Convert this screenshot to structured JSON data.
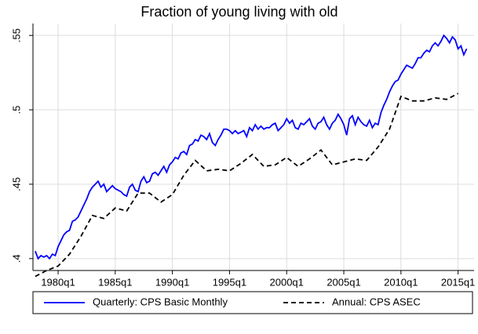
{
  "chart_data": {
    "type": "line",
    "title": "Fraction of young living with old",
    "xlim": [
      1977.8,
      2016.4
    ],
    "ylim": [
      0.392,
      0.558
    ],
    "xticks": [
      {
        "value": 1980,
        "label": "1980q1"
      },
      {
        "value": 1985,
        "label": "1985q1"
      },
      {
        "value": 1990,
        "label": "1990q1"
      },
      {
        "value": 1995,
        "label": "1995q1"
      },
      {
        "value": 2000,
        "label": "2000q1"
      },
      {
        "value": 2005,
        "label": "2005q1"
      },
      {
        "value": 2010,
        "label": "2010q1"
      },
      {
        "value": 2015,
        "label": "2015q1"
      }
    ],
    "yticks": [
      {
        "value": 0.4,
        "label": ".4"
      },
      {
        "value": 0.45,
        "label": ".45"
      },
      {
        "value": 0.5,
        "label": ".5"
      },
      {
        "value": 0.55,
        "label": ".55"
      }
    ],
    "grid": true,
    "legend": "bottom",
    "series": [
      {
        "name": "Quarterly: CPS Basic Monthly",
        "color": "#0000ff",
        "dash": "solid",
        "x": [
          1978,
          1978.25,
          1978.5,
          1978.75,
          1979,
          1979.25,
          1979.5,
          1979.75,
          1980,
          1980.25,
          1980.5,
          1980.75,
          1981,
          1981.25,
          1981.5,
          1981.75,
          1982,
          1982.25,
          1982.5,
          1982.75,
          1983,
          1983.25,
          1983.5,
          1983.75,
          1984,
          1984.25,
          1984.5,
          1984.75,
          1985,
          1985.25,
          1985.5,
          1985.75,
          1986,
          1986.25,
          1986.5,
          1986.75,
          1987,
          1987.25,
          1987.5,
          1987.75,
          1988,
          1988.25,
          1988.5,
          1988.75,
          1989,
          1989.25,
          1989.5,
          1989.75,
          1990,
          1990.25,
          1990.5,
          1990.75,
          1991,
          1991.25,
          1991.5,
          1991.75,
          1992,
          1992.25,
          1992.5,
          1992.75,
          1993,
          1993.25,
          1993.5,
          1993.75,
          1994,
          1994.25,
          1994.5,
          1994.75,
          1995,
          1995.25,
          1995.5,
          1995.75,
          1996,
          1996.25,
          1996.5,
          1996.75,
          1997,
          1997.25,
          1997.5,
          1997.75,
          1998,
          1998.25,
          1998.5,
          1998.75,
          1999,
          1999.25,
          1999.5,
          1999.75,
          2000,
          2000.25,
          2000.5,
          2000.75,
          2001,
          2001.25,
          2001.5,
          2001.75,
          2002,
          2002.25,
          2002.5,
          2002.75,
          2003,
          2003.25,
          2003.5,
          2003.75,
          2004,
          2004.25,
          2004.5,
          2004.75,
          2005,
          2005.25,
          2005.5,
          2005.75,
          2006,
          2006.25,
          2006.5,
          2006.75,
          2007,
          2007.25,
          2007.5,
          2007.75,
          2008,
          2008.25,
          2008.5,
          2008.75,
          2009,
          2009.25,
          2009.5,
          2009.75,
          2010,
          2010.25,
          2010.5,
          2010.75,
          2011,
          2011.25,
          2011.5,
          2011.75,
          2012,
          2012.25,
          2012.5,
          2012.75,
          2013,
          2013.25,
          2013.5,
          2013.75,
          2014,
          2014.25,
          2014.5,
          2014.75,
          2015,
          2015.25,
          2015.5,
          2015.75
        ],
        "values": [
          0.405,
          0.4,
          0.402,
          0.401,
          0.402,
          0.4,
          0.403,
          0.402,
          0.408,
          0.412,
          0.416,
          0.418,
          0.419,
          0.425,
          0.426,
          0.428,
          0.432,
          0.436,
          0.44,
          0.445,
          0.448,
          0.45,
          0.452,
          0.448,
          0.45,
          0.445,
          0.447,
          0.449,
          0.447,
          0.446,
          0.445,
          0.443,
          0.442,
          0.448,
          0.45,
          0.446,
          0.445,
          0.452,
          0.455,
          0.451,
          0.452,
          0.457,
          0.458,
          0.456,
          0.459,
          0.462,
          0.458,
          0.463,
          0.465,
          0.468,
          0.467,
          0.471,
          0.472,
          0.47,
          0.476,
          0.477,
          0.48,
          0.479,
          0.483,
          0.482,
          0.48,
          0.484,
          0.478,
          0.476,
          0.48,
          0.483,
          0.487,
          0.487,
          0.486,
          0.484,
          0.486,
          0.484,
          0.485,
          0.486,
          0.482,
          0.488,
          0.486,
          0.49,
          0.487,
          0.489,
          0.487,
          0.488,
          0.488,
          0.49,
          0.491,
          0.486,
          0.488,
          0.49,
          0.494,
          0.491,
          0.493,
          0.488,
          0.487,
          0.491,
          0.49,
          0.492,
          0.494,
          0.489,
          0.487,
          0.491,
          0.492,
          0.495,
          0.49,
          0.487,
          0.491,
          0.493,
          0.497,
          0.494,
          0.49,
          0.483,
          0.494,
          0.496,
          0.49,
          0.495,
          0.492,
          0.49,
          0.489,
          0.493,
          0.488,
          0.491,
          0.49,
          0.498,
          0.503,
          0.507,
          0.512,
          0.516,
          0.519,
          0.52,
          0.524,
          0.527,
          0.53,
          0.529,
          0.528,
          0.531,
          0.535,
          0.535,
          0.538,
          0.54,
          0.539,
          0.543,
          0.545,
          0.543,
          0.546,
          0.55,
          0.548,
          0.545,
          0.549,
          0.547,
          0.541,
          0.543,
          0.537,
          0.541
        ]
      },
      {
        "name": "Annual: CPS ASEC",
        "color": "#000000",
        "dash": "dashed",
        "x": [
          1978,
          1979,
          1980,
          1981,
          1982,
          1983,
          1984,
          1985,
          1986,
          1987,
          1988,
          1989,
          1990,
          1991,
          1992,
          1993,
          1994,
          1995,
          1996,
          1997,
          1998,
          1999,
          2000,
          2001,
          2002,
          2003,
          2004,
          2005,
          2006,
          2007,
          2008,
          2009,
          2010,
          2011,
          2012,
          2013,
          2014,
          2015
        ],
        "values": [
          0.388,
          0.392,
          0.395,
          0.403,
          0.415,
          0.429,
          0.427,
          0.434,
          0.432,
          0.444,
          0.444,
          0.438,
          0.443,
          0.456,
          0.466,
          0.459,
          0.46,
          0.459,
          0.464,
          0.47,
          0.462,
          0.463,
          0.468,
          0.462,
          0.467,
          0.473,
          0.463,
          0.465,
          0.467,
          0.466,
          0.475,
          0.487,
          0.509,
          0.506,
          0.506,
          0.508,
          0.507,
          0.511
        ]
      }
    ]
  }
}
